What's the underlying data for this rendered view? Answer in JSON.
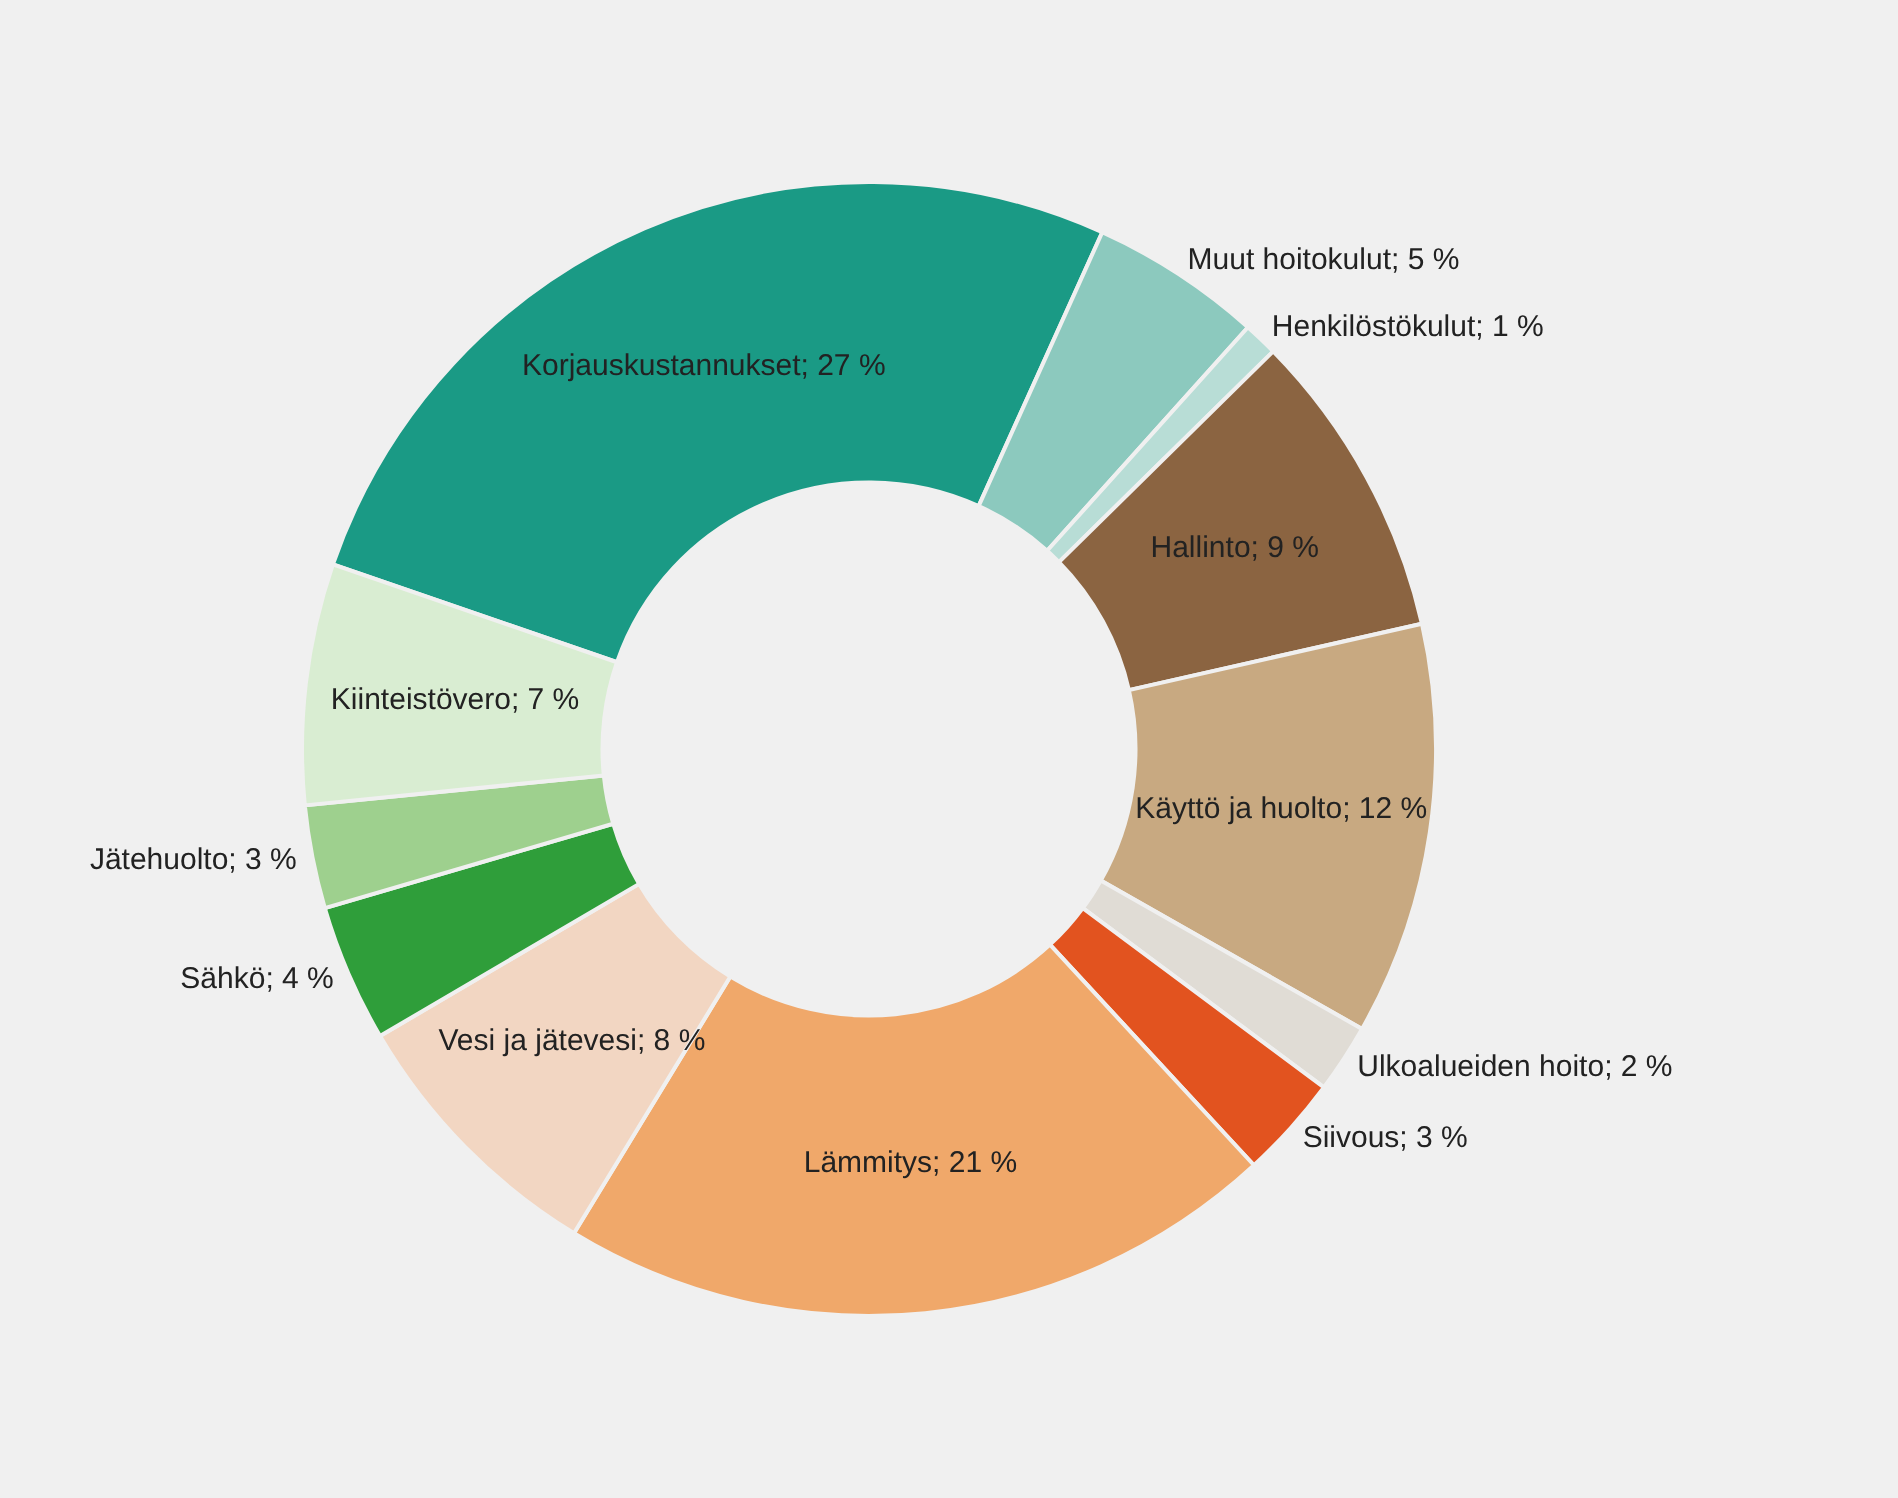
{
  "chart_data": {
    "type": "donut",
    "categories": [
      "Korjauskustannukset",
      "Muut hoitokulut",
      "Henkilöstökulut",
      "Hallinto",
      "Käyttö ja huolto",
      "Ulkoalueiden hoito",
      "Siivous",
      "Lämmitys",
      "Vesi ja jätevesi",
      "Sähkö",
      "Jätehuolto",
      "Kiinteistövero"
    ],
    "values": [
      27,
      5,
      1,
      9,
      12,
      2,
      3,
      21,
      8,
      4,
      3,
      7
    ],
    "value_labels": [
      "27 %",
      "5 %",
      "1 %",
      "9 %",
      "12 %",
      "2 %",
      "3 %",
      "21 %",
      "8 %",
      "4 %",
      "3 %",
      "7 %"
    ],
    "colors": [
      "#1a9a85",
      "#8cc9be",
      "#b8ddd6",
      "#8b6441",
      "#c8a981",
      "#e0dcd5",
      "#e2531f",
      "#f0a86a",
      "#f2d6c2",
      "#2f9e3a",
      "#9ed08e",
      "#d9edd2"
    ],
    "legend": false
  }
}
